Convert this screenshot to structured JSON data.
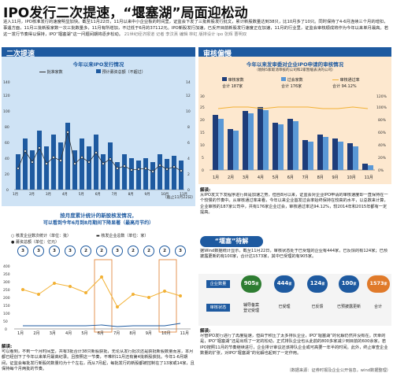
{
  "header": {
    "title": "IPO发行二次提速，“堰塞湖”局面迎松动",
    "intro": "进入11月，IPO核准发行的速度明显加快。截至11月22日，11月以来中小企业板的时间里，证监会下发了三批新股发行批文，累计新股数量达到38只，比10月多了10只。同时保持了4-6月连续三个月的增扣，事遇方面，11月三批新股家数一次三批数量多，11月有所增加，不过低于6月的37112元。IPO新股发行加速，已反开目前新股发行速度正在加速，11月的行业里，证监会审核顺成将作为今年以来单月最高。若这一发行节奏得以保持，IPO“堰塞湖”这一问题间期将逐步松动。",
    "byline": "21世纪经济报道 记者 李汶熹 编辑 林虹 版排设计 ipo 张辉 曹明双"
  },
  "left_band": "二次提速",
  "right_band": "审核偏慢",
  "chart1": {
    "title": "今年以来IPO发行情况",
    "legend": [
      "批准家数",
      "预计募资总额（不超过）"
    ],
    "date_note": "（截止11月22日）",
    "y_left_ticks": [
      "0",
      "20",
      "40",
      "60",
      "80",
      "100",
      "120",
      "140"
    ],
    "y_right_ticks": [
      "0",
      "2",
      "4",
      "6",
      "8",
      "10",
      "12",
      "14"
    ],
    "x_tick_label": "2017年1月",
    "x_tick_rows": [
      "1月",
      "2月",
      "3月",
      "4月",
      "5月",
      "6月",
      "7月",
      "8月",
      "9月",
      "10月",
      "11月"
    ]
  },
  "chart2": {
    "title": "按月度累计统计的新股核发情况，",
    "title2": "可以看到今年6月到8月期间下降显著（最高月节约）",
    "legend": [
      "核发企业数次统计（单位：批）",
      "核发企业总数（单位：家）",
      "募资总额（单位：亿元）"
    ],
    "x_ticks": [
      "1月",
      "2月",
      "3月",
      "4月",
      "5月",
      "6月",
      "7月",
      "8月",
      "9月",
      "10月",
      "11月"
    ],
    "y_ticks": [
      "0",
      "50",
      "100",
      "150",
      "200",
      "250",
      "300",
      "350",
      "400"
    ],
    "counts": [
      3,
      3,
      3,
      3,
      2,
      2,
      3,
      2,
      2,
      2,
      3
    ]
  },
  "chart3": {
    "title": "今年以来发审委对企业IPO申请的审核情况",
    "subtitle": "（剔除5家取消审核的公司和2家暂缓表决的公司）",
    "legend": [
      "审核家数",
      "过会家数",
      "审核通过率"
    ],
    "totals": [
      {
        "label": "合计 187家"
      },
      {
        "label": "合计 176家"
      },
      {
        "label": "合计 94.12%"
      }
    ],
    "x_ticks": [
      "1月",
      "2月",
      "3月",
      "4月",
      "5月",
      "6月",
      "7月",
      "8月",
      "9月",
      "10月",
      "11月"
    ],
    "y_ticks": [
      "0",
      "5",
      "10",
      "15",
      "20",
      "25",
      "30"
    ],
    "pct_ticks": [
      "0%",
      "20%",
      "40%",
      "60%",
      "80%",
      "100%",
      "120%"
    ]
  },
  "right_note": {
    "head": "解读:",
    "text": "从IPO发文下发程序进行目是加速之势，但自8月以来，证监会对企业IPO申请的审核速度却一直保持在一个较慢的节奏中。从审核通过率来看，今年以来企业首发过会率始终保持在较高的水平，以总数来计算，企业审核的187家公司中，共有176家企业过会，审核通过率达94.12%，较2014年和2015年都有一定提高。"
  },
  "left_note": {
    "head": "解读:",
    "text": "可以看到，不到一个月时间里，共有3批合计38只新股获批，无论从发行批次还是获批新股数量而言，本月都已经创下了今年以来单月最高纪录。且按照这一节奏，不难料11月还有第4批新股获批。今年1-6月期间，证监会每批发行新股的数量均为十个左右，而从7月起，每批发行的新股都被控制在了13家或14家，且保持每个月两批的节奏。"
  },
  "section3": {
    "band": "“堰塞”待解",
    "intro": "据Wind数据统计显示，截至11月22日，审核状态处于已受理的企业有444家，已反馈的有124家；已预披露更新的有100家，合计达1573家，其中已受理的有905家。",
    "stats": [
      {
        "value": "905",
        "unit": "家",
        "label": "辅导备案\n登记受理"
      },
      {
        "value": "444",
        "unit": "家",
        "label": "已受理"
      },
      {
        "value": "124",
        "unit": "家",
        "label": "已反馈"
      },
      {
        "value": "100",
        "unit": "家",
        "label": "已预披露更新"
      },
      {
        "value": "1573",
        "unit": "家",
        "label": "合计"
      }
    ],
    "row_labels": [
      "企业数量",
      "审核状态"
    ]
  },
  "bottom_note": {
    "head": "解读:",
    "text": "尽管IPO发行进行了再度提速，但由于积压了太多排队企业，IPO“堰塞湖”的化解仍然并没有在。庆幸的是，IPO“堰塞湖”还是出现了一定的松动，正式排队企业也从此前的800多家减少到目前的600余家。若IPO按照11月的节奏继续进行，企业排计审议还该排队企业或可高要一年半的时间。此外，终止审查企业数量的扩张，对IPO“堰塞湖”的化解也起到了一定作用。",
    "source": "（数据来源：证券时报及企业公开信息，wind数据整理）"
  }
}
